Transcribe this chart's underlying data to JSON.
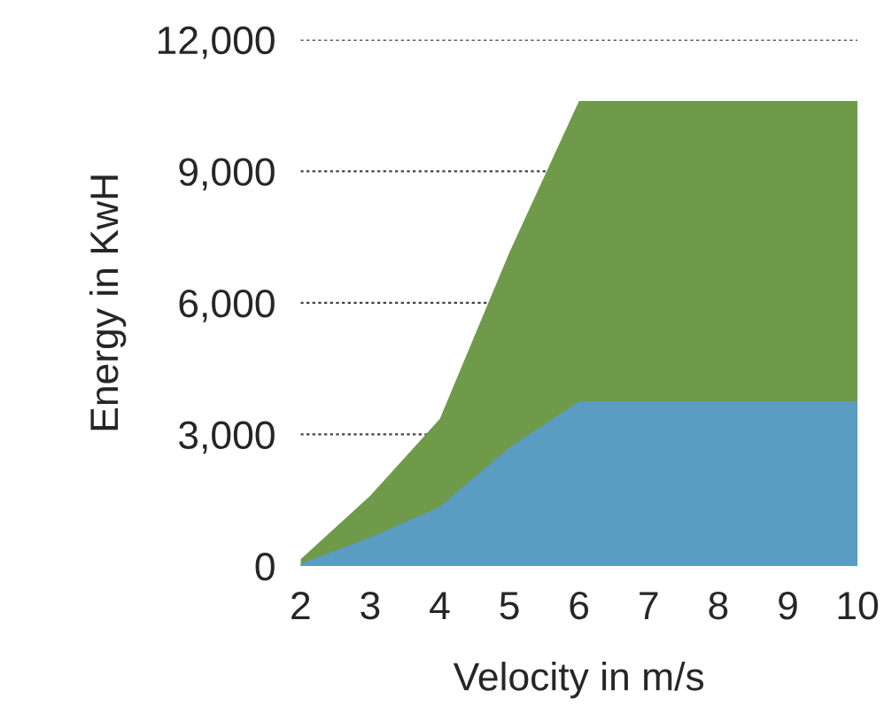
{
  "chart_data": {
    "type": "area",
    "xlabel": "Velocity in m/s",
    "ylabel": "Energy in KwH",
    "x": [
      2,
      3,
      4,
      5,
      6,
      7,
      8,
      9,
      10
    ],
    "series": [
      {
        "color": "#6f9a4a",
        "values": [
          150,
          1600,
          3350,
          7150,
          10600,
          10600,
          10600,
          10600,
          10600
        ]
      },
      {
        "color": "#5a9cc2",
        "values": [
          50,
          650,
          1350,
          2700,
          3750,
          3750,
          3750,
          3750,
          3750
        ]
      }
    ],
    "xlim": [
      2,
      10
    ],
    "xticks": [
      2,
      3,
      4,
      5,
      6,
      7,
      8,
      9,
      10
    ],
    "ylim": [
      0,
      12000
    ],
    "yticks": [
      {
        "value": 0,
        "label": "0"
      },
      {
        "value": 3000,
        "label": "3,000"
      },
      {
        "value": 6000,
        "label": "6,000"
      },
      {
        "value": 9000,
        "label": "9,000"
      },
      {
        "value": 12000,
        "label": "12,000"
      }
    ],
    "grid": "y"
  }
}
